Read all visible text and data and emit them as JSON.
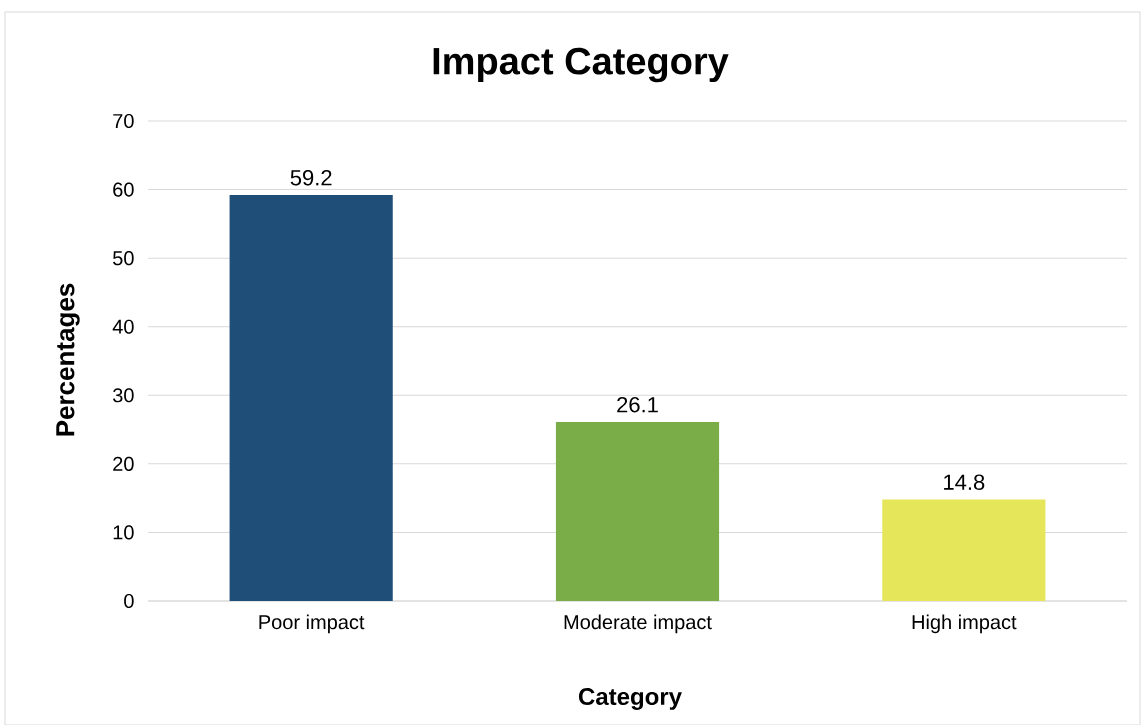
{
  "chart_data": {
    "type": "bar",
    "title": "Impact Category",
    "xlabel": "Category",
    "ylabel": "Percentages",
    "categories": [
      "Poor impact",
      "Moderate impact",
      "High impact"
    ],
    "values": [
      59.2,
      26.1,
      14.8
    ],
    "colors": [
      "#1f4e79",
      "#7aac47",
      "#e6e65a"
    ],
    "ylim": [
      0,
      70
    ],
    "yticks": [
      0,
      10,
      20,
      30,
      40,
      50,
      60,
      70
    ],
    "grid": "y",
    "data_labels": true
  }
}
